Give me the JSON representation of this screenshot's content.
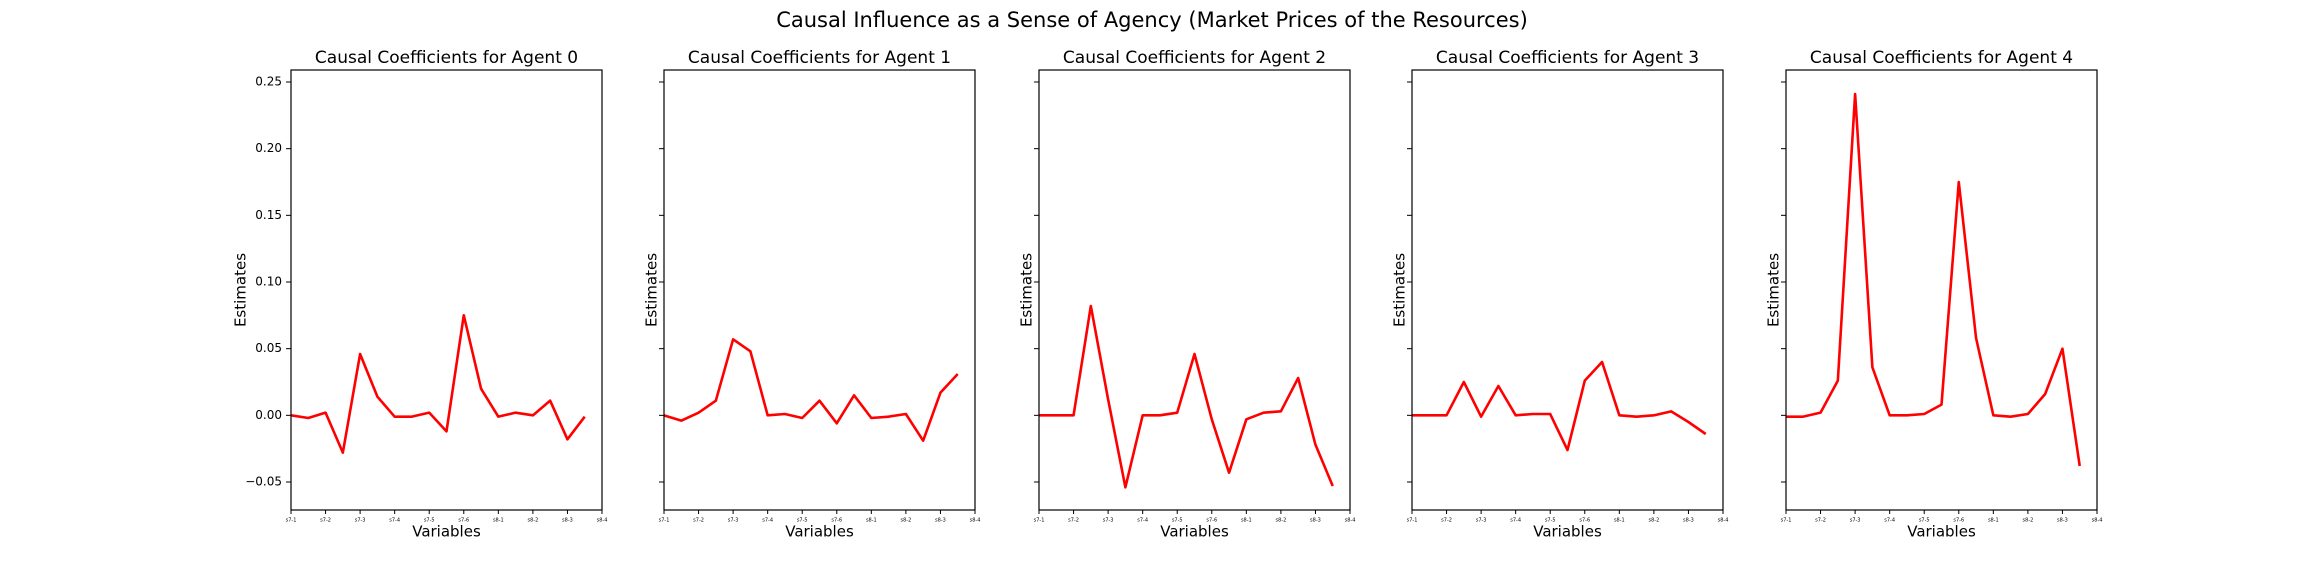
{
  "title": "Causal Influence as a Sense of Agency (Market Prices of the Resources)",
  "chart_data": [
    {
      "type": "line",
      "title": "Causal Coefficients for Agent 0",
      "xlabel": "Variables",
      "ylabel": "Estimates",
      "x": [
        0,
        1,
        2,
        3,
        4,
        5,
        6,
        7,
        8,
        9,
        10,
        11,
        12,
        13,
        14,
        15,
        16,
        17
      ],
      "xlim": [
        0,
        18
      ],
      "xticks": [
        {
          "value": 0,
          "label": "s7-1"
        },
        {
          "value": 2,
          "label": "s7-2"
        },
        {
          "value": 4,
          "label": "s7-3"
        },
        {
          "value": 6,
          "label": "s7-4"
        },
        {
          "value": 8,
          "label": "s7-5"
        },
        {
          "value": 10,
          "label": "s7-6"
        },
        {
          "value": 12,
          "label": "s8-1"
        },
        {
          "value": 14,
          "label": "s8-2"
        },
        {
          "value": 16,
          "label": "s8-3"
        },
        {
          "value": 18,
          "label": "s8-4"
        }
      ],
      "ylim": [
        -0.071,
        0.259
      ],
      "yticks": [
        {
          "value": -0.05,
          "label": "−0.05"
        },
        {
          "value": 0,
          "label": "0.00"
        },
        {
          "value": 0.05,
          "label": "0.05"
        },
        {
          "value": 0.1,
          "label": "0.10"
        },
        {
          "value": 0.15,
          "label": "0.15"
        },
        {
          "value": 0.2,
          "label": "0.20"
        },
        {
          "value": 0.25,
          "label": "0.25"
        }
      ],
      "color": "#ff0000",
      "values": [
        0.0,
        -0.002,
        0.002,
        -0.028,
        0.046,
        0.014,
        -0.001,
        -0.001,
        0.002,
        -0.012,
        0.075,
        0.02,
        -0.001,
        0.002,
        0.0,
        0.011,
        -0.018,
        -0.001
      ]
    },
    {
      "type": "line",
      "title": "Causal Coefficients for Agent 1",
      "xlabel": "Variables",
      "ylabel": "Estimates",
      "x": [
        0,
        1,
        2,
        3,
        4,
        5,
        6,
        7,
        8,
        9,
        10,
        11,
        12,
        13,
        14,
        15,
        16,
        17
      ],
      "xlim": [
        0,
        18
      ],
      "xticks": [
        {
          "value": 0,
          "label": "s7-1"
        },
        {
          "value": 2,
          "label": "s7-2"
        },
        {
          "value": 4,
          "label": "s7-3"
        },
        {
          "value": 6,
          "label": "s7-4"
        },
        {
          "value": 8,
          "label": "s7-5"
        },
        {
          "value": 10,
          "label": "s7-6"
        },
        {
          "value": 12,
          "label": "s8-1"
        },
        {
          "value": 14,
          "label": "s8-2"
        },
        {
          "value": 16,
          "label": "s8-3"
        },
        {
          "value": 18,
          "label": "s8-4"
        }
      ],
      "color": "#ff0000",
      "values": [
        0.0,
        -0.004,
        0.002,
        0.011,
        0.057,
        0.048,
        0.0,
        0.001,
        -0.002,
        0.011,
        -0.006,
        0.015,
        -0.002,
        -0.001,
        0.001,
        -0.019,
        0.017,
        0.031
      ]
    },
    {
      "type": "line",
      "title": "Causal Coefficients for Agent 2",
      "xlabel": "Variables",
      "ylabel": "Estimates",
      "x": [
        0,
        1,
        2,
        3,
        4,
        5,
        6,
        7,
        8,
        9,
        10,
        11,
        12,
        13,
        14,
        15,
        16,
        17
      ],
      "xlim": [
        0,
        18
      ],
      "xticks": [
        {
          "value": 0,
          "label": "s7-1"
        },
        {
          "value": 2,
          "label": "s7-2"
        },
        {
          "value": 4,
          "label": "s7-3"
        },
        {
          "value": 6,
          "label": "s7-4"
        },
        {
          "value": 8,
          "label": "s7-5"
        },
        {
          "value": 10,
          "label": "s7-6"
        },
        {
          "value": 12,
          "label": "s8-1"
        },
        {
          "value": 14,
          "label": "s8-2"
        },
        {
          "value": 16,
          "label": "s8-3"
        },
        {
          "value": 18,
          "label": "s8-4"
        }
      ],
      "color": "#ff0000",
      "values": [
        0.0,
        0.0,
        0.0,
        0.082,
        0.012,
        -0.054,
        0.0,
        0.0,
        0.002,
        0.046,
        -0.003,
        -0.043,
        -0.003,
        0.002,
        0.003,
        0.028,
        -0.022,
        -0.053
      ]
    },
    {
      "type": "line",
      "title": "Causal Coefficients for Agent 3",
      "xlabel": "Variables",
      "ylabel": "Estimates",
      "x": [
        0,
        1,
        2,
        3,
        4,
        5,
        6,
        7,
        8,
        9,
        10,
        11,
        12,
        13,
        14,
        15,
        16,
        17
      ],
      "xlim": [
        0,
        18
      ],
      "xticks": [
        {
          "value": 0,
          "label": "s7-1"
        },
        {
          "value": 2,
          "label": "s7-2"
        },
        {
          "value": 4,
          "label": "s7-3"
        },
        {
          "value": 6,
          "label": "s7-4"
        },
        {
          "value": 8,
          "label": "s7-5"
        },
        {
          "value": 10,
          "label": "s7-6"
        },
        {
          "value": 12,
          "label": "s8-1"
        },
        {
          "value": 14,
          "label": "s8-2"
        },
        {
          "value": 16,
          "label": "s8-3"
        },
        {
          "value": 18,
          "label": "s8-4"
        }
      ],
      "color": "#ff0000",
      "values": [
        0.0,
        0.0,
        0.0,
        0.025,
        -0.001,
        0.022,
        0.0,
        0.001,
        0.001,
        -0.026,
        0.026,
        0.04,
        0.0,
        -0.001,
        0.0,
        0.003,
        -0.005,
        -0.014
      ]
    },
    {
      "type": "line",
      "title": "Causal Coefficients for Agent 4",
      "xlabel": "Variables",
      "ylabel": "Estimates",
      "x": [
        0,
        1,
        2,
        3,
        4,
        5,
        6,
        7,
        8,
        9,
        10,
        11,
        12,
        13,
        14,
        15,
        16,
        17
      ],
      "xlim": [
        0,
        18
      ],
      "xticks": [
        {
          "value": 0,
          "label": "s7-1"
        },
        {
          "value": 2,
          "label": "s7-2"
        },
        {
          "value": 4,
          "label": "s7-3"
        },
        {
          "value": 6,
          "label": "s7-4"
        },
        {
          "value": 8,
          "label": "s7-5"
        },
        {
          "value": 10,
          "label": "s7-6"
        },
        {
          "value": 12,
          "label": "s8-1"
        },
        {
          "value": 14,
          "label": "s8-2"
        },
        {
          "value": 16,
          "label": "s8-3"
        },
        {
          "value": 18,
          "label": "s8-4"
        }
      ],
      "color": "#ff0000",
      "values": [
        -0.001,
        -0.001,
        0.002,
        0.026,
        0.241,
        0.036,
        0.0,
        0.0,
        0.001,
        0.008,
        0.175,
        0.058,
        0.0,
        -0.001,
        0.001,
        0.016,
        0.05,
        -0.038
      ]
    }
  ]
}
